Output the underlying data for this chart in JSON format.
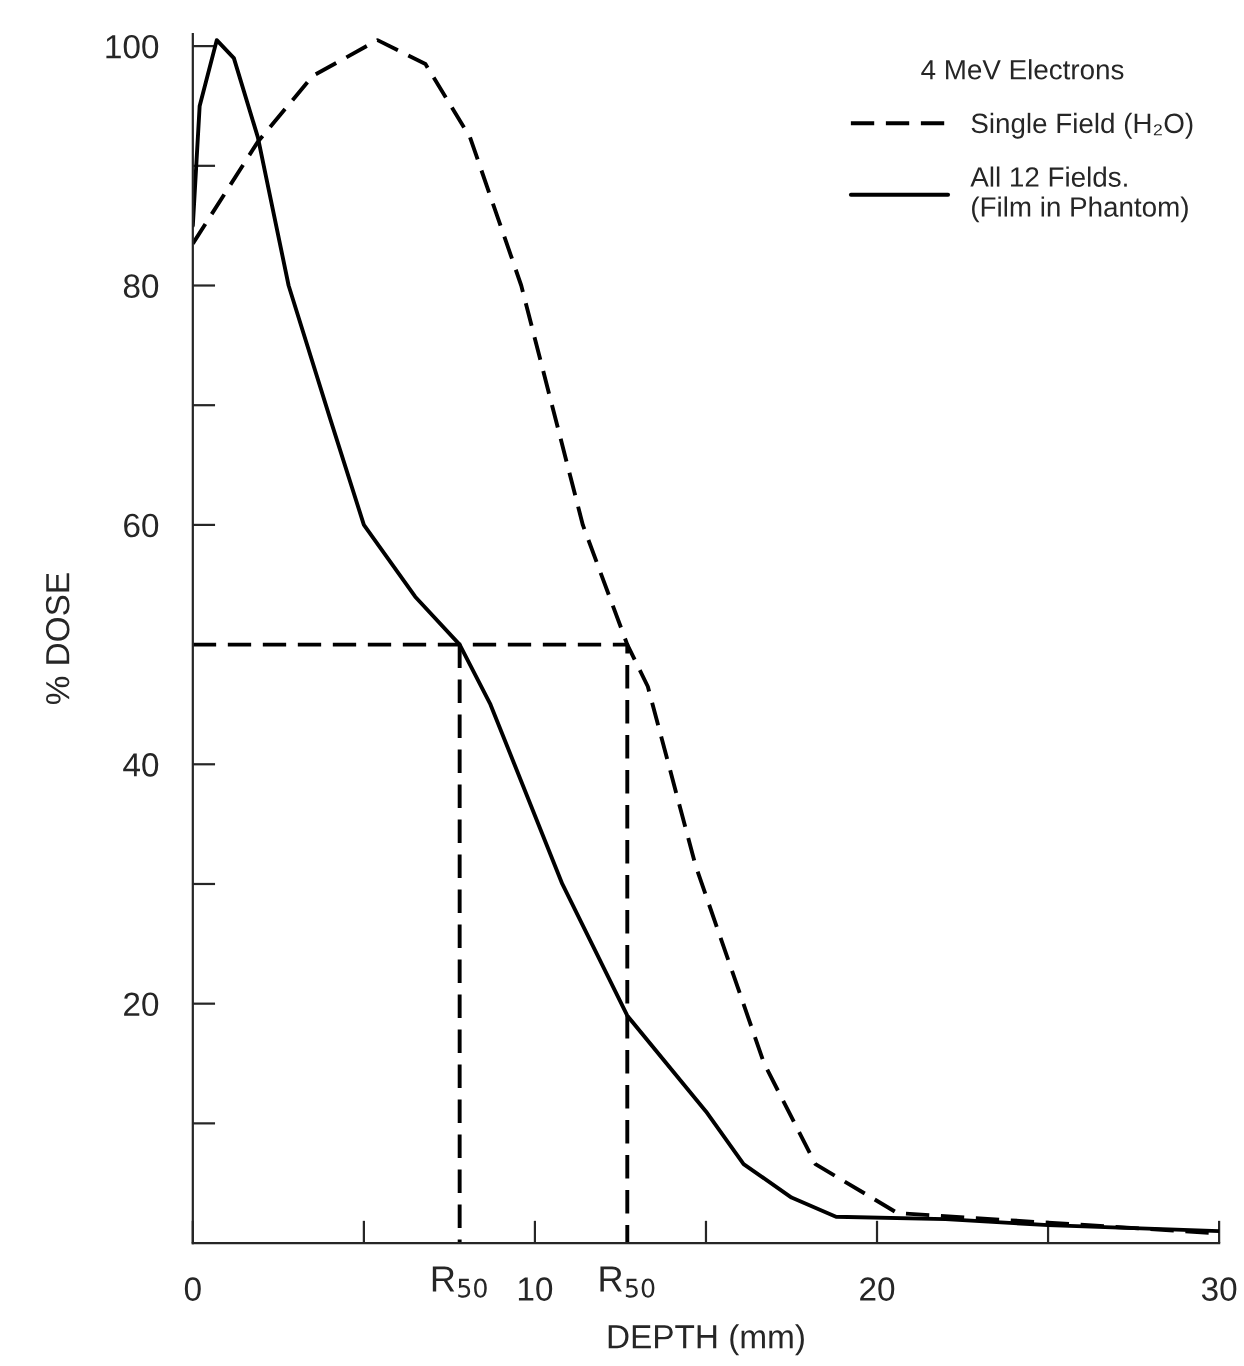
{
  "chart_data": {
    "type": "line",
    "xlabel": "DEPTH (mm)",
    "ylabel": "% DOSE",
    "legend_title": "4 MeV Electrons",
    "legend": "top right",
    "grid": false,
    "marker": "none",
    "xlim": [
      0,
      30
    ],
    "ylim": [
      0,
      101
    ],
    "xticks": [
      0,
      {
        "value": 5,
        "label": null
      },
      10,
      {
        "value": 15,
        "label": null
      },
      20,
      {
        "value": 25,
        "label": null
      },
      30
    ],
    "yticks": [
      {
        "value": 10,
        "label": null
      },
      20,
      {
        "value": 30,
        "label": null
      },
      40,
      {
        "value": 50,
        "label": null
      },
      60,
      {
        "value": 70,
        "label": null
      },
      80,
      {
        "value": 90,
        "label": null
      },
      100
    ],
    "series": [
      {
        "name": "Single Field (H₂O)",
        "color": "#000000",
        "line_style": "dashed",
        "x": [
          0,
          1.9,
          3.5,
          5.4,
          6.8,
          8.1,
          9.6,
          11.4,
          12.7,
          13.3,
          14.7,
          16.7,
          18.2,
          20.6,
          25,
          30
        ],
        "values": [
          83.5,
          92,
          97.5,
          100.5,
          98.5,
          92.4,
          80,
          60,
          50,
          46.5,
          31.5,
          15,
          6.6,
          2.5,
          1.7,
          0.8
        ]
      },
      {
        "name": "All 12 Fields.\n(Film in Phantom)",
        "color": "#000000",
        "line_style": "solid",
        "x": [
          0,
          0.2,
          0.7,
          1.2,
          1.9,
          2.8,
          4.0,
          5.0,
          6.5,
          7.8,
          8.7,
          9.4,
          10.8,
          12.7,
          15.0,
          16.1,
          17.5,
          18.8,
          22,
          25,
          30
        ],
        "values": [
          85,
          95,
          100.5,
          99,
          92.4,
          80,
          69,
          60,
          54,
          50,
          45,
          40,
          30,
          19,
          11,
          6.6,
          3.8,
          2.2,
          2,
          1.5,
          1
        ]
      },
      {
        "color": "#000000",
        "line_style": "dashed",
        "x": [
          0,
          12.7,
          12.7
        ],
        "values": [
          50,
          50,
          0
        ]
      },
      {
        "color": "#000000",
        "line_style": "dashed",
        "x": [
          7.8,
          7.8
        ],
        "values": [
          50,
          0
        ]
      }
    ],
    "annotations": [
      {
        "text": "R$_{50}$",
        "x": 7.8,
        "y": 0
      },
      {
        "text": "R$_{50}$",
        "x": 12.7,
        "y": 0
      }
    ]
  }
}
